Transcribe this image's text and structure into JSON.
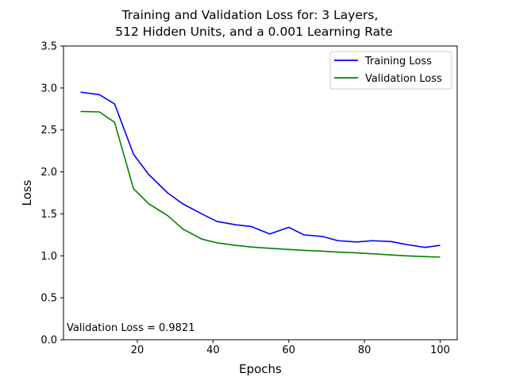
{
  "chart_data": {
    "type": "line",
    "title_line1": "Training and Validation Loss for: 3 Layers,",
    "title_line2": "512 Hidden Units, and a 0.001 Learning Rate",
    "xlabel": "Epochs",
    "ylabel": "Loss",
    "xlim": [
      0.5,
      104.5
    ],
    "ylim": [
      0,
      3.5
    ],
    "xticks": [
      20,
      40,
      60,
      80,
      100
    ],
    "yticks": [
      0.0,
      0.5,
      1.0,
      1.5,
      2.0,
      2.5,
      3.0,
      3.5
    ],
    "ytick_labels": [
      "0.0",
      "0.5",
      "1.0",
      "1.5",
      "2.0",
      "2.5",
      "3.0",
      "3.5"
    ],
    "grid": false,
    "legend_position": "top-right",
    "annotation": "Validation Loss = 0.9821",
    "series": [
      {
        "name": "Training Loss",
        "color": "#0000ff",
        "x": [
          5,
          10,
          14,
          19,
          23,
          28,
          32,
          37,
          41,
          46,
          50,
          55,
          60,
          64,
          69,
          73,
          78,
          82,
          87,
          91,
          96,
          100
        ],
        "y": [
          2.95,
          2.92,
          2.81,
          2.21,
          1.97,
          1.75,
          1.62,
          1.5,
          1.41,
          1.37,
          1.35,
          1.26,
          1.34,
          1.25,
          1.23,
          1.18,
          1.165,
          1.18,
          1.17,
          1.135,
          1.1,
          1.125
        ]
      },
      {
        "name": "Validation Loss",
        "color": "#008000",
        "x": [
          5,
          10,
          14,
          19,
          23,
          28,
          32,
          37,
          41,
          46,
          50,
          55,
          60,
          64,
          69,
          73,
          78,
          82,
          87,
          91,
          96,
          100
        ],
        "y": [
          2.72,
          2.715,
          2.59,
          1.8,
          1.62,
          1.48,
          1.32,
          1.2,
          1.155,
          1.125,
          1.105,
          1.09,
          1.075,
          1.065,
          1.055,
          1.045,
          1.035,
          1.025,
          1.01,
          1.0,
          0.99,
          0.985
        ]
      }
    ]
  }
}
